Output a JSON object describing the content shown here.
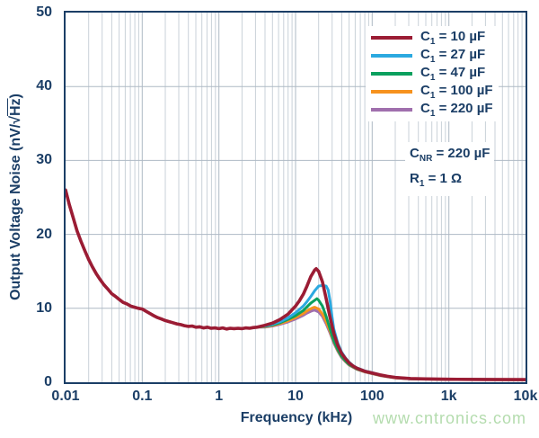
{
  "axes": {
    "x_label": "Frequency (kHz)",
    "y_label_prefix": "Output Voltage Noise (nV/√",
    "y_label_overline": "Hz",
    "y_label_suffix": ")"
  },
  "annotation": {
    "line1": {
      "sym": "C",
      "sub": "NR",
      "rest": " = 220 µF"
    },
    "line2": {
      "sym": "R",
      "sub": "1",
      "rest": " = 1 Ω"
    }
  },
  "watermark": "www.cntronics.com",
  "colors": {
    "frame_and_text": "#1b3e66",
    "grid_minor": "#c9d1d9",
    "grid_major": "#aeb9c4",
    "watermark": "#b4dcae",
    "background": "#ffffff"
  },
  "chart_data": {
    "type": "line",
    "title": "",
    "xlabel": "Frequency (kHz)",
    "ylabel": "Output Voltage Noise (nV/√Hz)",
    "x_scale": "log",
    "xlim": [
      0.01,
      10000
    ],
    "ylim": [
      0,
      50
    ],
    "grid": "vertical log minor+major lines, horizontal lines every 10",
    "legend_position": "upper right inside",
    "grid_minor_color": "#c9d1d9",
    "grid_major_color": "#aeb9c4",
    "x_tick_values": [
      0.01,
      0.1,
      1,
      10,
      100,
      1000,
      10000
    ],
    "x_tick_labels": [
      "0.01",
      "0.1",
      "1",
      "10",
      "100",
      "1k",
      "10k"
    ],
    "y_ticks": [
      0,
      10,
      20,
      30,
      40,
      50
    ],
    "common": {
      "note": "all five curves overlap below ~3 kHz",
      "x": [
        0.01,
        0.0112,
        0.0126,
        0.0141,
        0.0158,
        0.0178,
        0.02,
        0.0224,
        0.0251,
        0.0282,
        0.0316,
        0.0355,
        0.0398,
        0.0447,
        0.0501,
        0.0562,
        0.0631,
        0.0708,
        0.0794,
        0.0891,
        0.1,
        0.112,
        0.126,
        0.141,
        0.158,
        0.178,
        0.2,
        0.224,
        0.251,
        0.282,
        0.316,
        0.355,
        0.398,
        0.447,
        0.501,
        0.562,
        0.631,
        0.708,
        0.794,
        0.891,
        1.0,
        1.12,
        1.26,
        1.41,
        1.58,
        1.78,
        2.0,
        2.24,
        2.51,
        2.82,
        3.16
      ],
      "y": [
        26.0,
        24.0,
        22.2,
        20.5,
        19.1,
        17.8,
        16.6,
        15.6,
        14.7,
        13.9,
        13.2,
        12.6,
        12.0,
        11.6,
        11.2,
        10.8,
        10.6,
        10.3,
        10.15,
        10.0,
        9.9,
        9.6,
        9.3,
        9.0,
        8.75,
        8.55,
        8.35,
        8.2,
        8.05,
        7.9,
        7.8,
        7.65,
        7.55,
        7.6,
        7.45,
        7.5,
        7.35,
        7.45,
        7.3,
        7.35,
        7.25,
        7.35,
        7.2,
        7.3,
        7.25,
        7.3,
        7.25,
        7.35,
        7.3,
        7.4,
        7.45
      ]
    },
    "series": [
      {
        "sym": "C",
        "sub": "1",
        "rest": " = 10 µF",
        "name": "C1 = 10 µF",
        "color": "#9b1c34",
        "width": 3.6,
        "peak": {
          "x": 18.6,
          "y": 15.35
        },
        "x": [
          3.98,
          5.01,
          6.31,
          7.94,
          10,
          11.2,
          12.6,
          14.1,
          15.8,
          17.8,
          18.6,
          20,
          22.4,
          25.1,
          28.2,
          31.6,
          35.5,
          39.8,
          44.7,
          50.1,
          56.2,
          63.1,
          79.4,
          100,
          126,
          158,
          200,
          316,
          501,
          1000,
          3160,
          10000
        ],
        "y": [
          7.7,
          8.0,
          8.5,
          9.2,
          10.3,
          11.0,
          11.9,
          13.0,
          14.3,
          15.2,
          15.35,
          15.0,
          13.6,
          11.3,
          8.8,
          6.6,
          5.0,
          3.9,
          3.2,
          2.6,
          2.2,
          1.9,
          1.5,
          1.25,
          1.0,
          0.8,
          0.65,
          0.5,
          0.45,
          0.4,
          0.38,
          0.35
        ]
      },
      {
        "sym": "C",
        "sub": "1",
        "rest": " = 27 µF",
        "name": "C1 = 27 µF",
        "color": "#2ba9e0",
        "width": 3,
        "peak": {
          "x": 22.4,
          "y": 13.1
        },
        "x": [
          3.98,
          5.01,
          6.31,
          7.94,
          10,
          12.6,
          14.1,
          15.8,
          17.8,
          20,
          22.4,
          25.1,
          26.6,
          28.2,
          30,
          31.6,
          35.5,
          39.8,
          44.7,
          50.1,
          56.2,
          63.1,
          79.4,
          100,
          126,
          158,
          200,
          316,
          501,
          1000,
          10000
        ],
        "y": [
          7.6,
          7.85,
          8.2,
          8.7,
          9.4,
          10.3,
          10.9,
          11.6,
          12.4,
          13.0,
          13.1,
          13.0,
          12.5,
          11.0,
          8.8,
          7.2,
          5.3,
          4.1,
          3.3,
          2.7,
          2.25,
          1.95,
          1.55,
          1.3,
          1.0,
          0.82,
          0.66,
          0.5,
          0.45,
          0.4,
          0.35
        ]
      },
      {
        "sym": "C",
        "sub": "1",
        "rest": " = 47 µF",
        "name": "C1 = 47 µF",
        "color": "#0ba05e",
        "width": 3,
        "peak": {
          "x": 19,
          "y": 11.3
        },
        "x": [
          3.98,
          5.01,
          6.31,
          7.94,
          10,
          12.6,
          14.1,
          15.8,
          17.8,
          19,
          20,
          22.4,
          25.1,
          28.2,
          31.6,
          35.5,
          39.8,
          44.7,
          50.1,
          63.1,
          79.4,
          100,
          126,
          158,
          200,
          316,
          501,
          1000,
          3160,
          10000
        ],
        "y": [
          7.55,
          7.75,
          8.05,
          8.5,
          9.0,
          9.7,
          10.2,
          10.7,
          11.1,
          11.3,
          11.1,
          10.3,
          8.9,
          7.2,
          5.6,
          4.4,
          3.5,
          2.9,
          2.4,
          1.8,
          1.45,
          1.2,
          0.95,
          0.78,
          0.62,
          0.48,
          0.44,
          0.4,
          0.37,
          0.35
        ]
      },
      {
        "sym": "C",
        "sub": "1",
        "rest": " = 100 µF",
        "name": "C1 = 100 µF",
        "color": "#f6921e",
        "width": 3,
        "peak": {
          "x": 17.8,
          "y": 10.15
        },
        "x": [
          3.98,
          5.01,
          6.31,
          7.94,
          10,
          12.6,
          14.1,
          15.8,
          17,
          17.8,
          20,
          22.4,
          25.1,
          28.2,
          31.6,
          35.5,
          39.8,
          44.7,
          50.1,
          63.1,
          79.4,
          100,
          126,
          158,
          200,
          316,
          501,
          1000,
          3160,
          10000
        ],
        "y": [
          7.5,
          7.68,
          7.95,
          8.3,
          8.75,
          9.3,
          9.65,
          9.95,
          10.1,
          10.15,
          9.9,
          9.25,
          8.2,
          6.9,
          5.5,
          4.3,
          3.45,
          2.85,
          2.35,
          1.78,
          1.42,
          1.18,
          0.93,
          0.76,
          0.6,
          0.47,
          0.43,
          0.39,
          0.36,
          0.34
        ]
      },
      {
        "sym": "C",
        "sub": "1",
        "rest": " = 220 µF",
        "name": "C1 = 220 µF",
        "color": "#a06fad",
        "width": 3,
        "peak": {
          "x": 17.8,
          "y": 9.75
        },
        "x": [
          3.98,
          5.01,
          6.31,
          7.94,
          10,
          12.6,
          14.1,
          15.8,
          17,
          17.8,
          20,
          22.4,
          25.1,
          28.2,
          31.6,
          35.5,
          39.8,
          44.7,
          50.1,
          63.1,
          79.4,
          100,
          126,
          158,
          200,
          316,
          501,
          1000,
          3160,
          10000
        ],
        "y": [
          7.45,
          7.6,
          7.85,
          8.15,
          8.55,
          9.05,
          9.35,
          9.6,
          9.72,
          9.75,
          9.5,
          8.9,
          7.9,
          6.65,
          5.3,
          4.2,
          3.35,
          2.78,
          2.3,
          1.74,
          1.4,
          1.15,
          0.9,
          0.74,
          0.58,
          0.46,
          0.42,
          0.38,
          0.35,
          0.33
        ]
      }
    ]
  }
}
